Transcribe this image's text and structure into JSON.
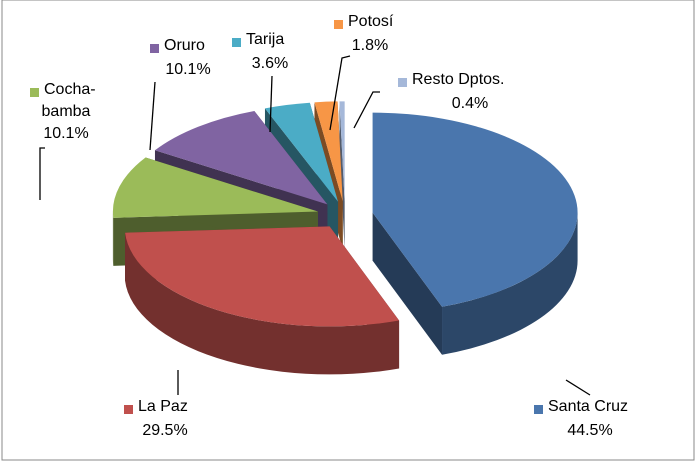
{
  "chart_data": {
    "type": "pie3d",
    "categories": [
      "Santa Cruz",
      "La Paz",
      "Cocha-bamba",
      "Oruro",
      "Tarija",
      "Potosí",
      "Resto Dptos."
    ],
    "values": [
      44.5,
      29.5,
      10.1,
      10.1,
      3.6,
      1.8,
      0.4
    ],
    "value_labels": [
      "44.5%",
      "29.5%",
      "10.1%",
      "10.1%",
      "3.6%",
      "1.8%",
      "0.4%"
    ],
    "colors": [
      "#4a76ad",
      "#c0504d",
      "#9bbb59",
      "#8064a2",
      "#4bacc6",
      "#f79646",
      "#a5b8d9"
    ]
  }
}
